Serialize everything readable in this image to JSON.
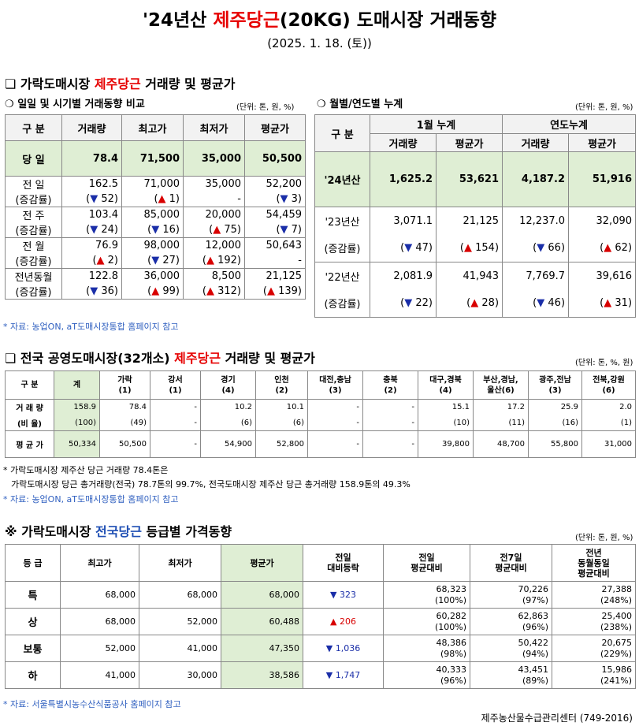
{
  "title": {
    "prefix": "'24년산 ",
    "highlight": "제주당근",
    "suffix": "(20KG) 도매시장 거래동향"
  },
  "date": "(2025. 1. 18. (토))",
  "sec1": {
    "box": "❏",
    "pre": "가락도매시장 ",
    "hl": "제주당근",
    "post": " 거래량 및 평균가"
  },
  "sub1": {
    "mark": "❍",
    "label": "일일 및 시기별 거래동향 비교",
    "unit": "(단위: 톤, 원, %)"
  },
  "sub2": {
    "mark": "❍",
    "label": "월별/연도별 누계",
    "unit": "(단위: 톤, 원, %)"
  },
  "t1": {
    "headers": [
      "구 분",
      "거래량",
      "최고가",
      "최저가",
      "평균가"
    ],
    "today": {
      "label": "당 일",
      "vals": [
        "78.4",
        "71,500",
        "35,000",
        "50,500"
      ]
    },
    "rows": [
      {
        "l1": "전 일",
        "l2": "(증감률)",
        "vals": [
          "162.5",
          "71,000",
          "35,000",
          "52,200"
        ],
        "chg": [
          {
            "a": "▼",
            "v": " 52",
            "d": "dn"
          },
          {
            "a": "▲",
            "v": " 1",
            "d": "up"
          },
          {
            "a": "",
            "v": "-",
            "d": ""
          },
          {
            "a": "▼",
            "v": " 3",
            "d": "dn"
          }
        ]
      },
      {
        "l1": "전 주",
        "l2": "(증감률)",
        "vals": [
          "103.4",
          "85,000",
          "20,000",
          "54,459"
        ],
        "chg": [
          {
            "a": "▼",
            "v": " 24",
            "d": "dn"
          },
          {
            "a": "▼",
            "v": " 16",
            "d": "dn"
          },
          {
            "a": "▲",
            "v": " 75",
            "d": "up"
          },
          {
            "a": "▼",
            "v": " 7",
            "d": "dn"
          }
        ]
      },
      {
        "l1": "전 월",
        "l2": "(증감률)",
        "vals": [
          "76.9",
          "98,000",
          "12,000",
          "50,643"
        ],
        "chg": [
          {
            "a": "▲",
            "v": " 2",
            "d": "up"
          },
          {
            "a": "▼",
            "v": " 27",
            "d": "dn"
          },
          {
            "a": "▲",
            "v": " 192",
            "d": "up"
          },
          {
            "a": "",
            "v": "-",
            "d": ""
          }
        ]
      },
      {
        "l1": "전년동월",
        "l2": "(증감률)",
        "vals": [
          "122.8",
          "36,000",
          "8,500",
          "21,125"
        ],
        "chg": [
          {
            "a": "▼",
            "v": " 36",
            "d": "dn"
          },
          {
            "a": "▲",
            "v": " 99",
            "d": "up"
          },
          {
            "a": "▲",
            "v": " 312",
            "d": "up"
          },
          {
            "a": "▲",
            "v": " 139",
            "d": "up"
          }
        ]
      }
    ]
  },
  "t2": {
    "h_gubun": "구 분",
    "h_jan": "1월 누계",
    "h_year": "연도누계",
    "sub": [
      "거래량",
      "평균가",
      "거래량",
      "평균가"
    ],
    "rows": [
      {
        "label": "'24년산",
        "vals": [
          "1,625.2",
          "53,621",
          "4,187.2",
          "51,916"
        ]
      },
      {
        "label": "'23년산",
        "vals": [
          "3,071.1",
          "21,125",
          "12,237.0",
          "32,090"
        ],
        "chg_label": "(증감률)",
        "chg": [
          {
            "a": "▼",
            "v": " 47",
            "d": "dn"
          },
          {
            "a": "▲",
            "v": " 154",
            "d": "up"
          },
          {
            "a": "▼",
            "v": " 66",
            "d": "dn"
          },
          {
            "a": "▲",
            "v": " 62",
            "d": "up"
          }
        ]
      },
      {
        "label": "'22년산",
        "vals": [
          "2,081.9",
          "41,943",
          "7,769.7",
          "39,616"
        ],
        "chg_label": "(증감률)",
        "chg": [
          {
            "a": "▼",
            "v": " 22",
            "d": "dn"
          },
          {
            "a": "▲",
            "v": " 28",
            "d": "up"
          },
          {
            "a": "▼",
            "v": " 46",
            "d": "dn"
          },
          {
            "a": "▲",
            "v": " 31",
            "d": "up"
          }
        ]
      }
    ]
  },
  "note1": "* 자료: 농업ON, aT도매시장통합 홈페이지 참고",
  "sec2": {
    "box": "❏",
    "pre": "전국 공영도매시장(32개소) ",
    "hl": "제주당근",
    "post": " 거래량 및 평균가",
    "unit": "(단위: 톤, %, 원)"
  },
  "t3": {
    "headers": [
      [
        "구 분",
        ""
      ],
      [
        "계",
        ""
      ],
      [
        "가락",
        "(1)"
      ],
      [
        "강서",
        "(1)"
      ],
      [
        "경기",
        "(4)"
      ],
      [
        "인천",
        "(2)"
      ],
      [
        "대전,충남",
        "(3)"
      ],
      [
        "충북",
        "(2)"
      ],
      [
        "대구,경북",
        "(4)"
      ],
      [
        "부산,경남,",
        "울산(6)"
      ],
      [
        "광주,전남",
        "(3)"
      ],
      [
        "전북,강원",
        "(6)"
      ]
    ],
    "vol_label": "거 래 량",
    "vol": [
      "158.9",
      "78.4",
      "-",
      "10.2",
      "10.1",
      "-",
      "-",
      "15.1",
      "17.2",
      "25.9",
      "2.0"
    ],
    "ratio_label": "(비 율)",
    "ratio": [
      "(100)",
      "(49)",
      "-",
      "(6)",
      "(6)",
      "-",
      "-",
      "(10)",
      "(11)",
      "(16)",
      "(1)"
    ],
    "avg_label": "평 균 가",
    "avg": [
      "50,334",
      "50,500",
      "-",
      "54,900",
      "52,800",
      "-",
      "-",
      "39,800",
      "48,700",
      "55,800",
      "31,000"
    ]
  },
  "note3a": "* 가락도매시장 제주산 당근 거래량 78.4톤은",
  "note3b": "가락도매시장 당근 총거래량(전국) 78.7톤의 99.7%, 전국도매시장 제주산 당근 총거래량 158.9톤의 49.3%",
  "note3c": "* 자료: 농업ON, aT도매시장통합 홈페이지 참고",
  "sec3": {
    "mark": "※",
    "pre": "가락도매시장 ",
    "hl": "전국당근",
    "post": " 등급별 가격동향",
    "unit": "(단위: 톤, 원, %)"
  },
  "t4": {
    "headers": [
      [
        "등 급"
      ],
      [
        "최고가"
      ],
      [
        "최저가"
      ],
      [
        "평균가"
      ],
      [
        "전일",
        "대비등락"
      ],
      [
        "전일",
        "평균대비"
      ],
      [
        "전7일",
        "평균대비"
      ],
      [
        "전년",
        "동월동일",
        "평균대비"
      ]
    ],
    "rows": [
      {
        "g": "특",
        "max": "68,000",
        "min": "68,000",
        "avg": "68,000",
        "a": "▼",
        "chg": " 323",
        "d": "dn",
        "p1": "68,323",
        "p1b": "(100%)",
        "p7": "70,226",
        "p7b": "(97%)",
        "py": "27,388",
        "pyb": "(248%)"
      },
      {
        "g": "상",
        "max": "68,000",
        "min": "52,000",
        "avg": "60,488",
        "a": "▲",
        "chg": " 206",
        "d": "up",
        "p1": "60,282",
        "p1b": "(100%)",
        "p7": "62,863",
        "p7b": "(96%)",
        "py": "25,400",
        "pyb": "(238%)"
      },
      {
        "g": "보통",
        "max": "52,000",
        "min": "41,000",
        "avg": "47,350",
        "a": "▼",
        "chg": " 1,036",
        "d": "dn",
        "p1": "48,386",
        "p1b": "(98%)",
        "p7": "50,422",
        "p7b": "(94%)",
        "py": "20,675",
        "pyb": "(229%)"
      },
      {
        "g": "하",
        "max": "41,000",
        "min": "30,000",
        "avg": "38,586",
        "a": "▼",
        "chg": " 1,747",
        "d": "dn",
        "p1": "40,333",
        "p1b": "(96%)",
        "p7": "43,451",
        "p7b": "(89%)",
        "py": "15,986",
        "pyb": "(241%)"
      }
    ]
  },
  "note4": "* 자료: 서울특별시농수산식품공사 홈페이지 참고",
  "footer": "제주농산물수급관리센터 (749-2016)",
  "colors": {
    "red": "#e60000",
    "blue": "#1f4fb4",
    "highlight": "#dfeed4",
    "up": "#d80000",
    "down": "#1a2ea8"
  }
}
